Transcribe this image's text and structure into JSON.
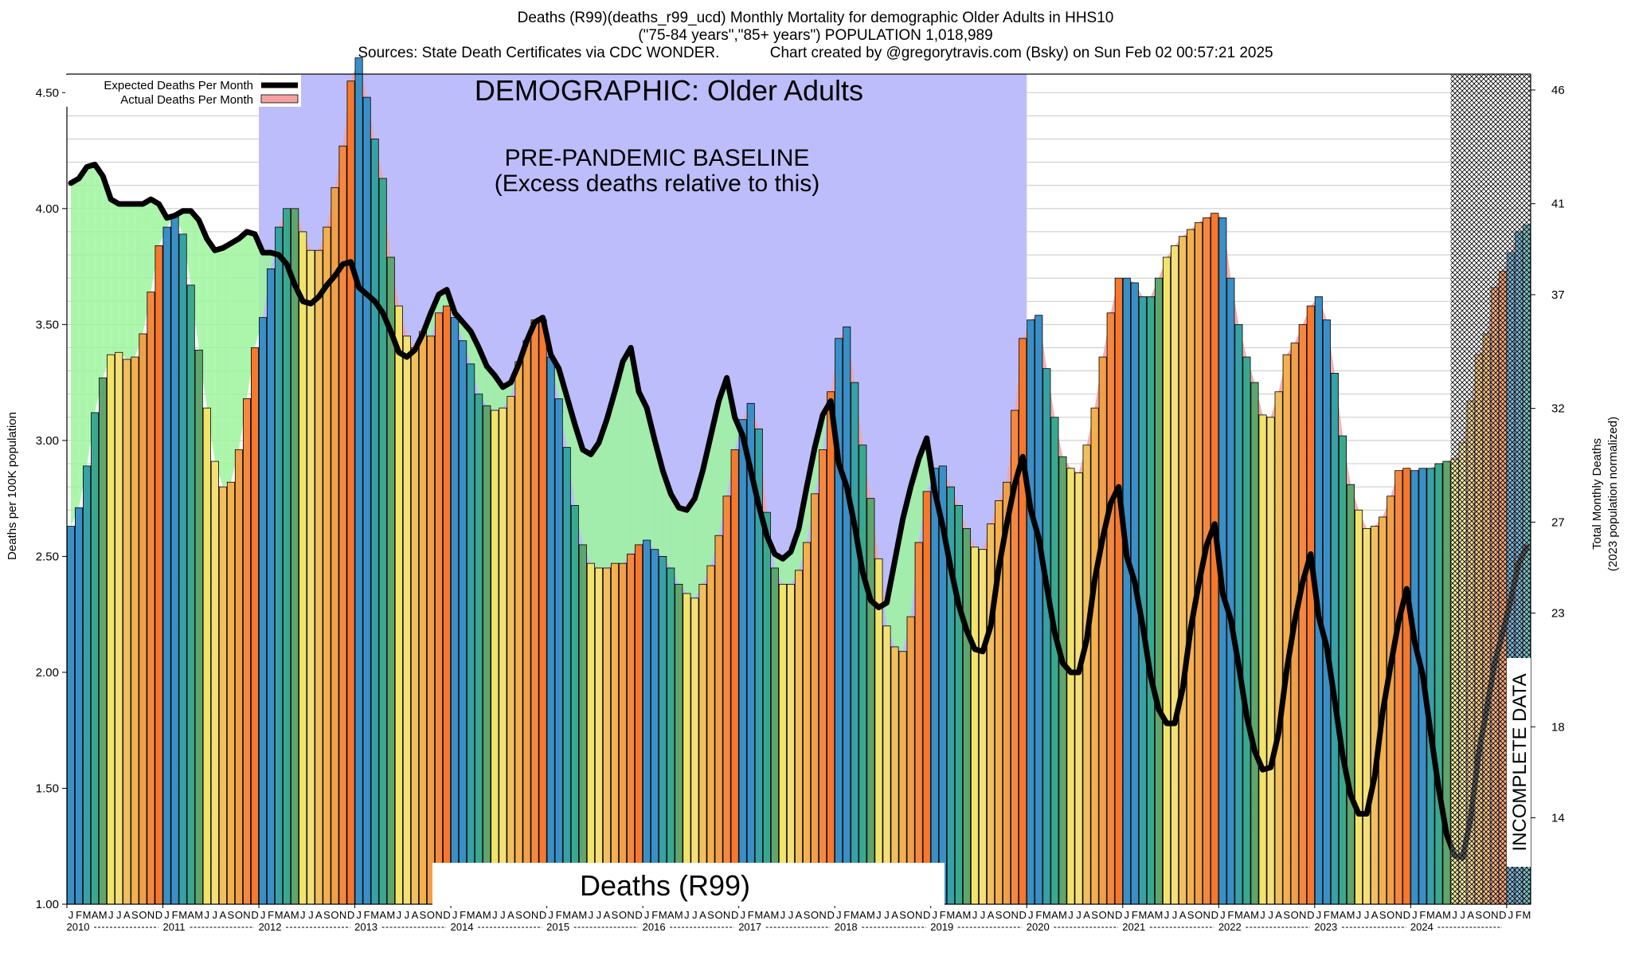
{
  "header": {
    "title_line1": "Deaths (R99)(deaths_r99_ucd) Monthly Mortality for demographic Older Adults in HHS10",
    "title_line2": "(\"75-84 years\",\"85+ years\") POPULATION 1,018,989",
    "title_line3_left": "Sources: State Death Certificates via CDC WONDER.",
    "title_line3_right": "Chart created by @gregorytravis.com (Bsky) on Sun Feb 02 00:57:21 2025"
  },
  "chart_data": {
    "type": "bar",
    "title": "Deaths (R99)(deaths_r99_ucd) Monthly Mortality for demographic Older Adults in HHS10",
    "ylabel": "Deaths per 100K population",
    "y2label": "Total Monthly Deaths",
    "y2label_sub": "(2023 population normalized)",
    "ylim": [
      1.0,
      4.58
    ],
    "y2lim": [
      10.2,
      46.7
    ],
    "y_ticks": [
      "1.00",
      "1.50",
      "2.00",
      "2.50",
      "3.00",
      "3.50",
      "4.00",
      "4.50"
    ],
    "y2_ticks": [
      "14",
      "18",
      "23",
      "27",
      "32",
      "37",
      "41",
      "46"
    ],
    "y2_tick_values": [
      14,
      18,
      23,
      27,
      32,
      37,
      41,
      46
    ],
    "month_letters": "JFMAMJJASOND",
    "years": [
      "2010",
      "2011",
      "2012",
      "2013",
      "2014",
      "2015",
      "2016",
      "2017",
      "2018",
      "2019",
      "2020",
      "2021",
      "2022",
      "2023",
      "2024"
    ],
    "baseline_period": {
      "start": "2012-01",
      "end": "2019-12"
    },
    "incomplete_from": "2024-06",
    "legend": {
      "expected": "Expected Deaths Per Month",
      "actual": "Actual Deaths Per Month",
      "position": "top-left"
    },
    "annotations": {
      "demographic": "DEMOGRAPHIC: Older Adults",
      "baseline_title": "PRE-PANDEMIC BASELINE",
      "baseline_sub": "(Excess deaths relative to this)",
      "cause_label": "Deaths (R99)",
      "incomplete": "INCOMPLETE DATA"
    },
    "colors": {
      "baseline_region": "#bdbdfb",
      "below_expected": "#9ef59e",
      "above_expected": "#f4a2a2",
      "expected_line": "#000000",
      "incomplete_pattern": "#000000",
      "bar_palette": [
        "#3a8fc6",
        "#3a8fc6",
        "#37a1a5",
        "#3aa88e",
        "#5fa56e",
        "#f2e46a",
        "#f5e078",
        "#f0c060",
        "#f5b04e",
        "#f0a048",
        "#f58840",
        "#f5782d"
      ]
    },
    "series": [
      {
        "name": "Actual Deaths Per Month",
        "values": [
          2.63,
          2.71,
          2.89,
          3.12,
          3.27,
          3.37,
          3.38,
          3.35,
          3.36,
          3.46,
          3.64,
          3.84,
          3.92,
          3.97,
          3.89,
          3.67,
          3.39,
          3.14,
          2.91,
          2.8,
          2.82,
          2.96,
          3.18,
          3.4,
          3.53,
          3.74,
          3.92,
          4.0,
          4.0,
          3.9,
          3.82,
          3.82,
          3.92,
          4.09,
          4.27,
          4.55,
          4.65,
          4.48,
          4.3,
          4.13,
          3.79,
          3.58,
          3.45,
          3.4,
          3.47,
          3.45,
          3.55,
          3.58,
          3.53,
          3.43,
          3.33,
          3.2,
          3.15,
          3.13,
          3.14,
          3.19,
          3.34,
          3.43,
          3.52,
          3.52,
          3.36,
          3.18,
          2.97,
          2.72,
          2.55,
          2.47,
          2.45,
          2.45,
          2.47,
          2.47,
          2.51,
          2.55,
          2.57,
          2.53,
          2.5,
          2.45,
          2.38,
          2.34,
          2.32,
          2.38,
          2.46,
          2.59,
          2.76,
          2.96,
          3.09,
          3.16,
          3.05,
          2.69,
          2.45,
          2.38,
          2.38,
          2.44,
          2.56,
          2.77,
          2.96,
          3.21,
          3.44,
          3.49,
          3.25,
          2.98,
          2.75,
          2.49,
          2.2,
          2.11,
          2.09,
          2.24,
          2.56,
          2.78,
          2.88,
          2.89,
          2.8,
          2.72,
          2.62,
          2.54,
          2.53,
          2.64,
          2.74,
          2.82,
          3.13,
          3.44,
          3.52,
          3.54,
          3.31,
          3.1,
          2.93,
          2.88,
          2.86,
          2.98,
          3.14,
          3.36,
          3.55,
          3.7,
          3.7,
          3.68,
          3.62,
          3.62,
          3.7,
          3.79,
          3.84,
          3.88,
          3.91,
          3.94,
          3.96,
          3.98,
          3.96,
          3.7,
          3.5,
          3.36,
          3.25,
          3.11,
          3.1,
          3.21,
          3.37,
          3.42,
          3.5,
          3.58,
          3.62,
          3.52,
          3.29,
          3.02,
          2.81,
          2.7,
          2.62,
          2.63,
          2.67,
          2.76,
          2.87,
          2.88,
          2.87,
          2.88,
          2.88,
          2.9,
          2.91,
          2.92,
          2.99,
          3.17,
          3.37,
          3.46,
          3.66,
          3.73,
          3.81,
          3.9,
          3.93
        ]
      },
      {
        "name": "Expected Deaths Per Month",
        "values": [
          4.11,
          4.13,
          4.18,
          4.19,
          4.14,
          4.04,
          4.02,
          4.02,
          4.02,
          4.02,
          4.04,
          4.02,
          3.96,
          3.97,
          3.99,
          3.99,
          3.95,
          3.87,
          3.82,
          3.83,
          3.85,
          3.87,
          3.9,
          3.89,
          3.81,
          3.81,
          3.8,
          3.76,
          3.67,
          3.6,
          3.59,
          3.62,
          3.67,
          3.71,
          3.76,
          3.77,
          3.66,
          3.63,
          3.6,
          3.55,
          3.47,
          3.38,
          3.36,
          3.39,
          3.46,
          3.55,
          3.63,
          3.65,
          3.55,
          3.51,
          3.47,
          3.4,
          3.32,
          3.28,
          3.23,
          3.25,
          3.33,
          3.43,
          3.51,
          3.53,
          3.37,
          3.31,
          3.19,
          3.07,
          2.96,
          2.94,
          2.99,
          3.09,
          3.21,
          3.34,
          3.4,
          3.21,
          3.14,
          3.0,
          2.87,
          2.77,
          2.71,
          2.7,
          2.75,
          2.87,
          3.02,
          3.17,
          3.27,
          3.1,
          3.02,
          2.87,
          2.72,
          2.59,
          2.51,
          2.49,
          2.52,
          2.62,
          2.8,
          2.97,
          3.11,
          3.17,
          2.9,
          2.8,
          2.63,
          2.43,
          2.31,
          2.28,
          2.3,
          2.48,
          2.66,
          2.8,
          2.92,
          3.01,
          2.78,
          2.63,
          2.45,
          2.29,
          2.18,
          2.1,
          2.09,
          2.2,
          2.45,
          2.64,
          2.81,
          2.93,
          2.7,
          2.58,
          2.37,
          2.17,
          2.04,
          2.0,
          2.0,
          2.14,
          2.4,
          2.58,
          2.73,
          2.8,
          2.5,
          2.39,
          2.2,
          1.98,
          1.84,
          1.78,
          1.78,
          1.93,
          2.19,
          2.38,
          2.55,
          2.64,
          2.34,
          2.23,
          2.03,
          1.81,
          1.66,
          1.58,
          1.59,
          1.74,
          2.01,
          2.22,
          2.39,
          2.51,
          2.24,
          2.11,
          1.88,
          1.64,
          1.47,
          1.39,
          1.39,
          1.55,
          1.83,
          2.03,
          2.22,
          2.36,
          2.13,
          1.99,
          1.74,
          1.5,
          1.3,
          1.21,
          1.2,
          1.37,
          1.65,
          1.84,
          2.04,
          2.17,
          2.31,
          2.47,
          2.54
        ]
      }
    ]
  }
}
